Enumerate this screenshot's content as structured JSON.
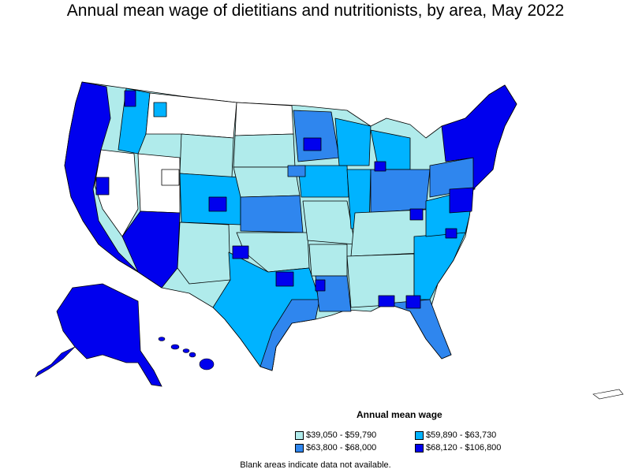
{
  "title": "Annual mean wage of dietitians and nutritionists, by area, May 2022",
  "colors": {
    "tier1": "#b0ebeb",
    "tier2": "#00b3ff",
    "tier3": "#2f86ee",
    "tier4": "#0000ee",
    "nodata": "#ffffff",
    "border": "#000000"
  },
  "legend": {
    "title": "Annual mean wage",
    "items": [
      {
        "label": "$39,050 - $59,790",
        "color": "#b0ebeb"
      },
      {
        "label": "$59,890 - $63,730",
        "color": "#00b3ff"
      },
      {
        "label": "$63,800 - $68,000",
        "color": "#2f86ee"
      },
      {
        "label": "$68,120 - $106,800",
        "color": "#0000ee"
      }
    ]
  },
  "note": "Blank areas indicate data not available."
}
